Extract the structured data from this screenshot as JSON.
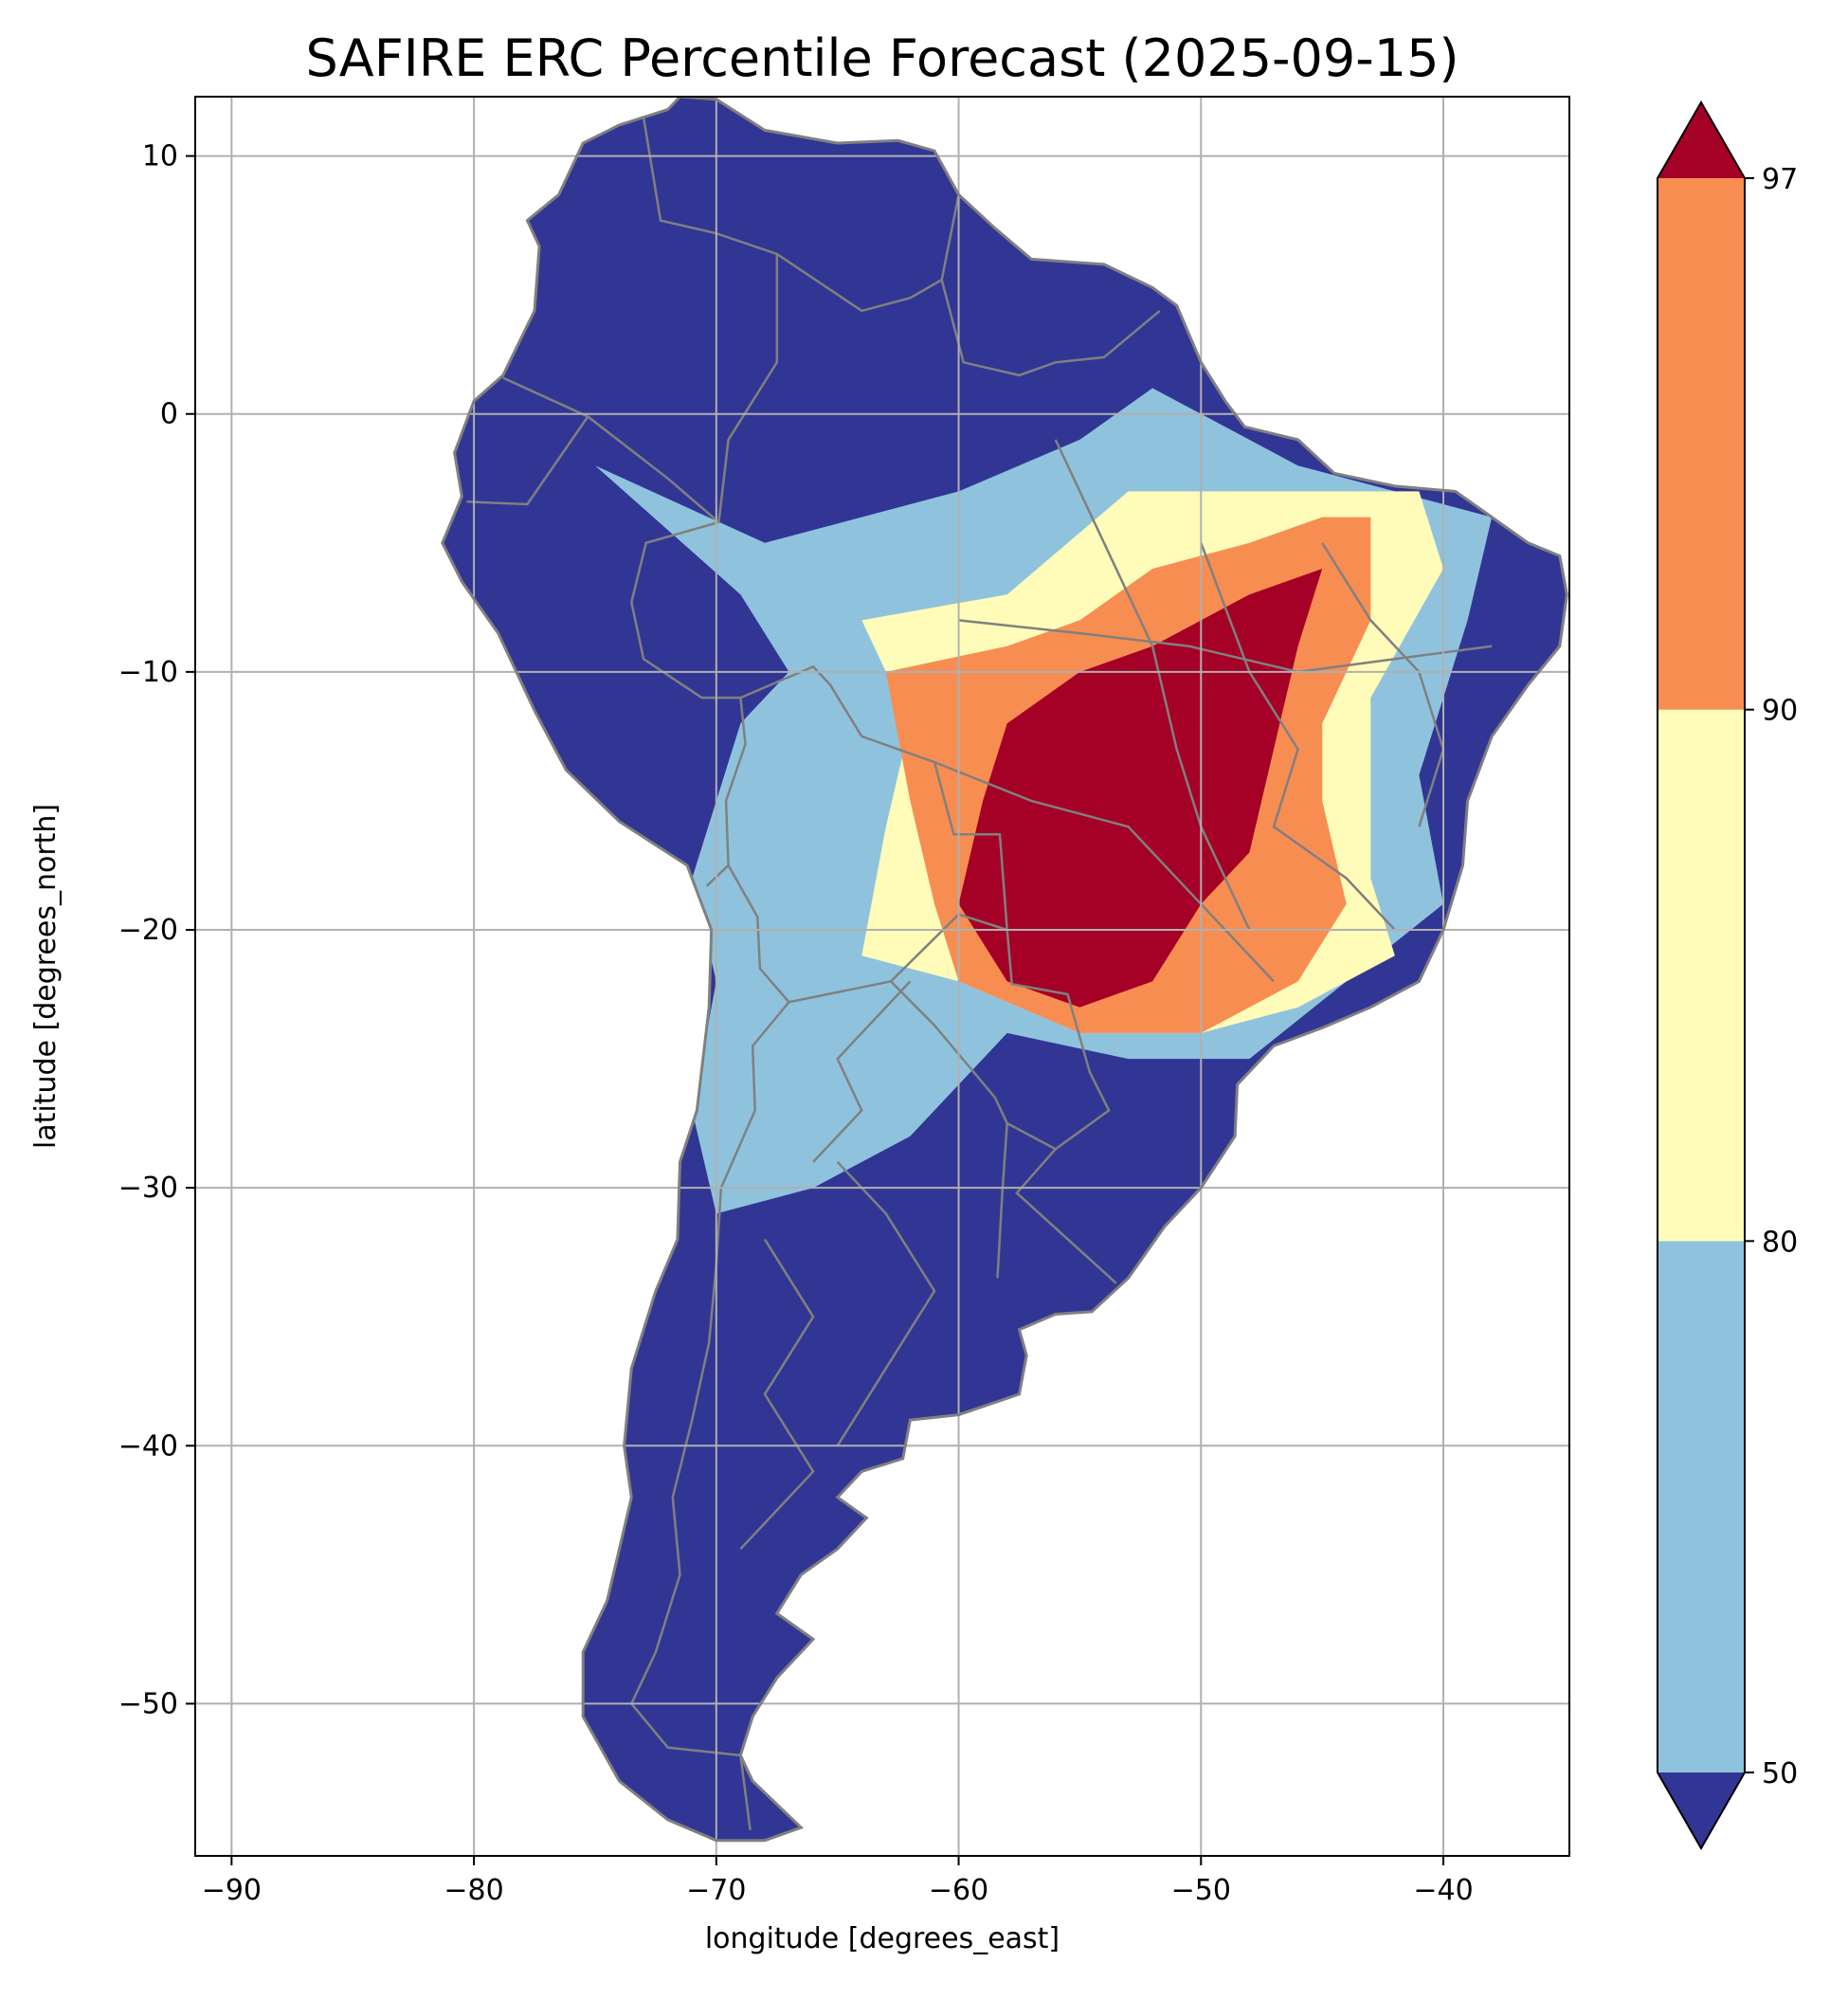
{
  "chart_data": {
    "type": "map",
    "title": "SAFIRE ERC Percentile Forecast (2025-09-15)",
    "xlabel": "longitude [degrees_east]",
    "ylabel": "latitude [degrees_north]",
    "xlim": [
      -91.5,
      -34.8
    ],
    "ylim": [
      -55.9,
      12.3
    ],
    "xticks": [
      -90,
      -80,
      -70,
      -60,
      -50,
      -40
    ],
    "yticks": [
      10,
      0,
      -10,
      -20,
      -30,
      -40,
      -50
    ],
    "xtick_labels": [
      "−90",
      "−80",
      "−70",
      "−60",
      "−50",
      "−40"
    ],
    "ytick_labels": [
      "10",
      "0",
      "−10",
      "−20",
      "−30",
      "−40",
      "−50"
    ],
    "grid": true,
    "colors": {
      "below_50": "#313695",
      "p50_80": "#8fc3dd",
      "p80_90": "#fffbb9",
      "p90_97": "#f88d52",
      "above_97": "#a50026",
      "borders": "#808080",
      "grid": "#b0b0b0"
    },
    "colorbar": {
      "levels": [
        50,
        80,
        90,
        97
      ],
      "labels": [
        "50",
        "80",
        "90",
        "97"
      ],
      "extend": "both",
      "placement": "right"
    },
    "regions": [
      {
        "category": "p50_80",
        "points": [
          [
            -75,
            -2
          ],
          [
            -68,
            -5
          ],
          [
            -60,
            -3
          ],
          [
            -55,
            -1
          ],
          [
            -52,
            1
          ],
          [
            -50,
            0
          ],
          [
            -46,
            -2
          ],
          [
            -42,
            -3
          ],
          [
            -38,
            -4
          ],
          [
            -39,
            -8
          ],
          [
            -41,
            -14
          ],
          [
            -40,
            -19
          ],
          [
            -44,
            -22
          ],
          [
            -48,
            -25
          ],
          [
            -53,
            -25
          ],
          [
            -58,
            -24
          ],
          [
            -62,
            -28
          ],
          [
            -66,
            -30
          ],
          [
            -70,
            -31
          ],
          [
            -71,
            -27
          ],
          [
            -70,
            -22
          ],
          [
            -71,
            -18
          ],
          [
            -69,
            -12
          ],
          [
            -67,
            -10
          ],
          [
            -69,
            -7
          ]
        ]
      },
      {
        "category": "p80_90",
        "points": [
          [
            -64,
            -8
          ],
          [
            -58,
            -7
          ],
          [
            -53,
            -3
          ],
          [
            -50,
            -3
          ],
          [
            -45,
            -3
          ],
          [
            -41,
            -3
          ],
          [
            -40,
            -6
          ],
          [
            -43,
            -11
          ],
          [
            -43,
            -18
          ],
          [
            -42,
            -21
          ],
          [
            -46,
            -23
          ],
          [
            -50,
            -24
          ],
          [
            -55,
            -24
          ],
          [
            -60,
            -22
          ],
          [
            -64,
            -21
          ],
          [
            -63,
            -16
          ],
          [
            -62,
            -12
          ]
        ]
      },
      {
        "category": "p90_97",
        "points": [
          [
            -63,
            -10
          ],
          [
            -58,
            -9
          ],
          [
            -55,
            -8
          ],
          [
            -52,
            -6
          ],
          [
            -48,
            -5
          ],
          [
            -45,
            -4
          ],
          [
            -43,
            -4
          ],
          [
            -43,
            -8
          ],
          [
            -45,
            -12
          ],
          [
            -45,
            -15
          ],
          [
            -44,
            -19
          ],
          [
            -46,
            -22
          ],
          [
            -50,
            -24
          ],
          [
            -55,
            -24
          ],
          [
            -60,
            -22
          ],
          [
            -61,
            -19
          ],
          [
            -62,
            -15
          ]
        ]
      },
      {
        "category": "above_97",
        "points": [
          [
            -58,
            -12
          ],
          [
            -55,
            -10
          ],
          [
            -52,
            -9
          ],
          [
            -48,
            -7
          ],
          [
            -45,
            -6
          ],
          [
            -46,
            -9
          ],
          [
            -47,
            -13
          ],
          [
            -48,
            -17
          ],
          [
            -50,
            -19
          ],
          [
            -52,
            -22
          ],
          [
            -55,
            -23
          ],
          [
            -58,
            -22
          ],
          [
            -60,
            -19
          ],
          [
            -59,
            -15
          ]
        ]
      }
    ]
  }
}
